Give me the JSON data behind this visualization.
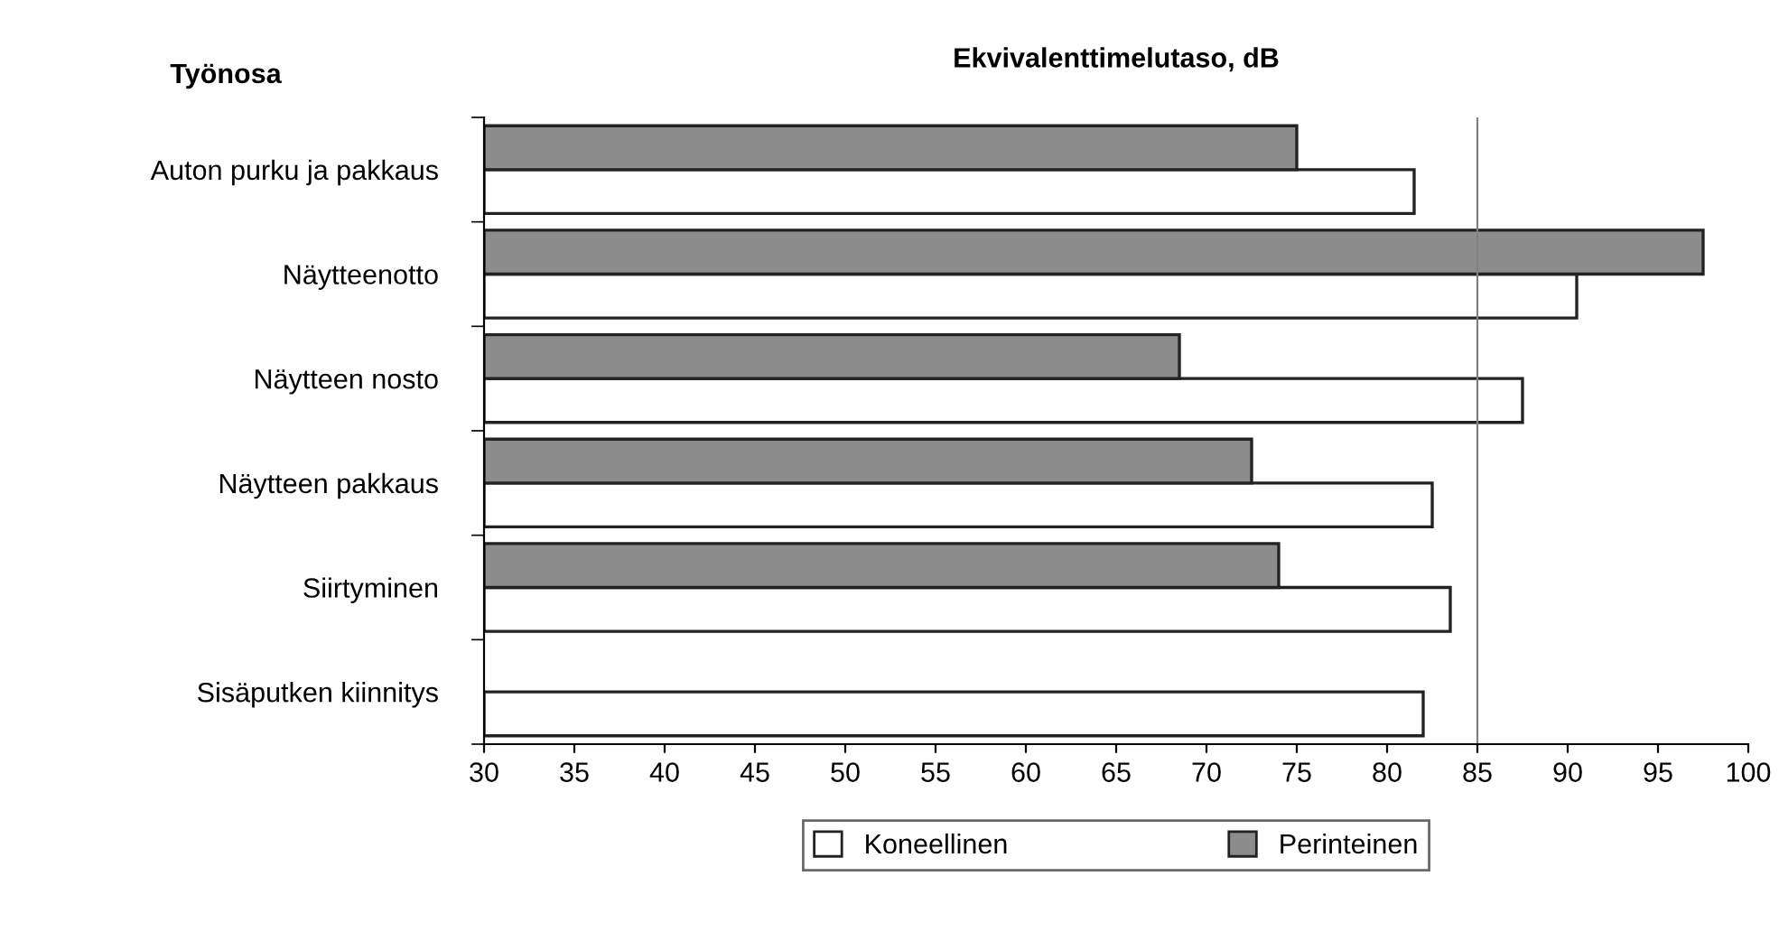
{
  "chart_data": {
    "type": "bar",
    "orientation": "horizontal",
    "title": "Ekvivalenttimelutaso, dB",
    "ylabel": "Työnosa",
    "categories": [
      "Auton purku ja pakkaus",
      "Näytteenotto",
      "Näytteen nosto",
      "Näytteen pakkaus",
      "Siirtyminen",
      "Sisäputken kiinnitys"
    ],
    "series": [
      {
        "name": "Koneellinen",
        "color": "#ffffff",
        "values": [
          81.5,
          90.5,
          87.5,
          82.5,
          83.5,
          82
        ]
      },
      {
        "name": "Perinteinen",
        "color": "#8c8c8c",
        "values": [
          75,
          97.5,
          68.5,
          72.5,
          74,
          null
        ]
      }
    ],
    "xlim": [
      30,
      100
    ],
    "xticks": [
      30,
      35,
      40,
      45,
      50,
      55,
      60,
      65,
      70,
      75,
      80,
      85,
      90,
      95,
      100
    ],
    "ref_lines": [
      {
        "axis": "x",
        "value": 85,
        "color": "#808080"
      }
    ],
    "grid": false,
    "legend": "bottom"
  }
}
